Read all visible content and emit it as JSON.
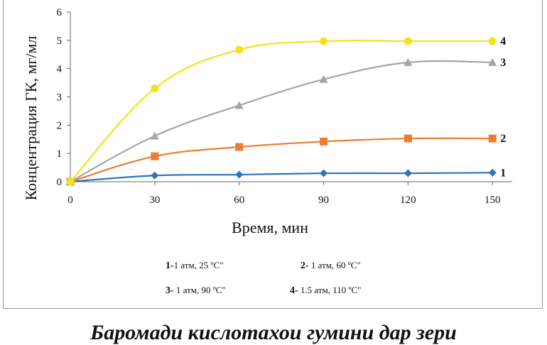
{
  "chart_data": {
    "type": "line",
    "ylabel": "Концентрация ГК, мг/мл",
    "xlabel": "Время, мин",
    "x": [
      0,
      30,
      60,
      90,
      120,
      150
    ],
    "xticks": [
      "0",
      "30",
      "60",
      "90",
      "120",
      "150"
    ],
    "yticks": [
      "0",
      "1",
      "2",
      "3",
      "4",
      "5",
      "6"
    ],
    "xlim": [
      0,
      157
    ],
    "ylim": [
      0,
      6
    ],
    "smooth": true,
    "series": [
      {
        "name": "1",
        "color": "#2e75b6",
        "marker": "diamond",
        "values": [
          0,
          0.22,
          0.25,
          0.3,
          0.3,
          0.32
        ]
      },
      {
        "name": "2",
        "color": "#ed7d31",
        "marker": "square",
        "values": [
          0,
          0.9,
          1.23,
          1.42,
          1.53,
          1.53
        ]
      },
      {
        "name": "3",
        "color": "#a5a5a5",
        "marker": "triangle",
        "values": [
          0,
          1.62,
          2.7,
          3.62,
          4.22,
          4.22
        ]
      },
      {
        "name": "4",
        "color": "#f5e21a",
        "marker": "circle",
        "values": [
          0,
          3.3,
          4.67,
          4.97,
          4.97,
          4.97
        ]
      }
    ],
    "legend": [
      {
        "num": "1-",
        "text": "1 атм, 25 ºC\""
      },
      {
        "num": "2-",
        "text": " 1 атм, 60 ºC\""
      },
      {
        "num": "3-",
        "text": " 1 атм, 90 ºC\""
      },
      {
        "num": "4-",
        "text": " 1.5 атм, 110 ºC\""
      }
    ]
  },
  "caption": "Баромади кислотахои гумини дар зери"
}
